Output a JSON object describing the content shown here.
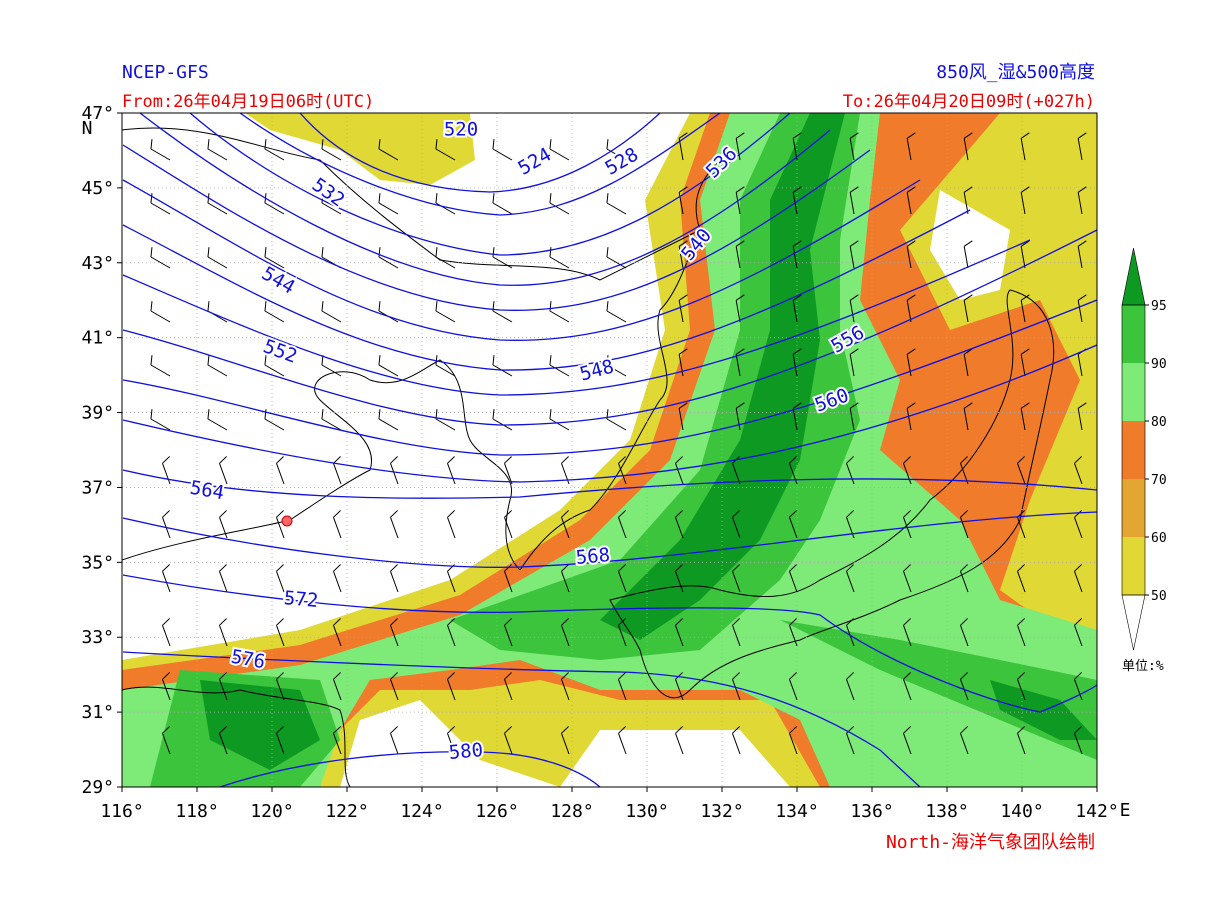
{
  "header": {
    "source": "NCEP-GFS",
    "product": "850风_湿&500高度",
    "from": "From:26年04月19日06时(UTC)",
    "to": "To:26年04月20日09时(+027h)"
  },
  "map": {
    "lon_range": [
      116,
      142
    ],
    "lat_range": [
      29,
      47
    ],
    "lon_ticks": [
      {
        "value": 116,
        "label": "116°"
      },
      {
        "value": 118,
        "label": "118°"
      },
      {
        "value": 120,
        "label": "120°"
      },
      {
        "value": 122,
        "label": "122°"
      },
      {
        "value": 124,
        "label": "124°"
      },
      {
        "value": 126,
        "label": "126°"
      },
      {
        "value": 128,
        "label": "128°"
      },
      {
        "value": 130,
        "label": "130°"
      },
      {
        "value": 132,
        "label": "132°"
      },
      {
        "value": 134,
        "label": "134°"
      },
      {
        "value": 136,
        "label": "136°"
      },
      {
        "value": 138,
        "label": "138°"
      },
      {
        "value": 140,
        "label": "140°"
      },
      {
        "value": 142,
        "label": "142°"
      }
    ],
    "lat_ticks": [
      {
        "value": 29,
        "label": "29°"
      },
      {
        "value": 31,
        "label": "31°"
      },
      {
        "value": 33,
        "label": "33°"
      },
      {
        "value": 35,
        "label": "35°"
      },
      {
        "value": 37,
        "label": "37°"
      },
      {
        "value": 39,
        "label": "39°"
      },
      {
        "value": 41,
        "label": "41°"
      },
      {
        "value": 43,
        "label": "43°"
      },
      {
        "value": 45,
        "label": "45°"
      },
      {
        "value": 47,
        "label": "47°"
      }
    ],
    "lon_unit": "E",
    "lat_unit": "N",
    "contour_labels": [
      "520",
      "524",
      "528",
      "532",
      "536",
      "540",
      "544",
      "548",
      "552",
      "556",
      "560",
      "564",
      "568",
      "572",
      "576",
      "580"
    ]
  },
  "colorbar": {
    "ticks": [
      50,
      60,
      70,
      80,
      90,
      95
    ],
    "colors": [
      "#e0d835",
      "#e4a632",
      "#ef7b2b",
      "#7eea78",
      "#3cc43c",
      "#0e9a22"
    ],
    "unit": "单位:%"
  },
  "credit": "North-海洋气象团队绘制"
}
